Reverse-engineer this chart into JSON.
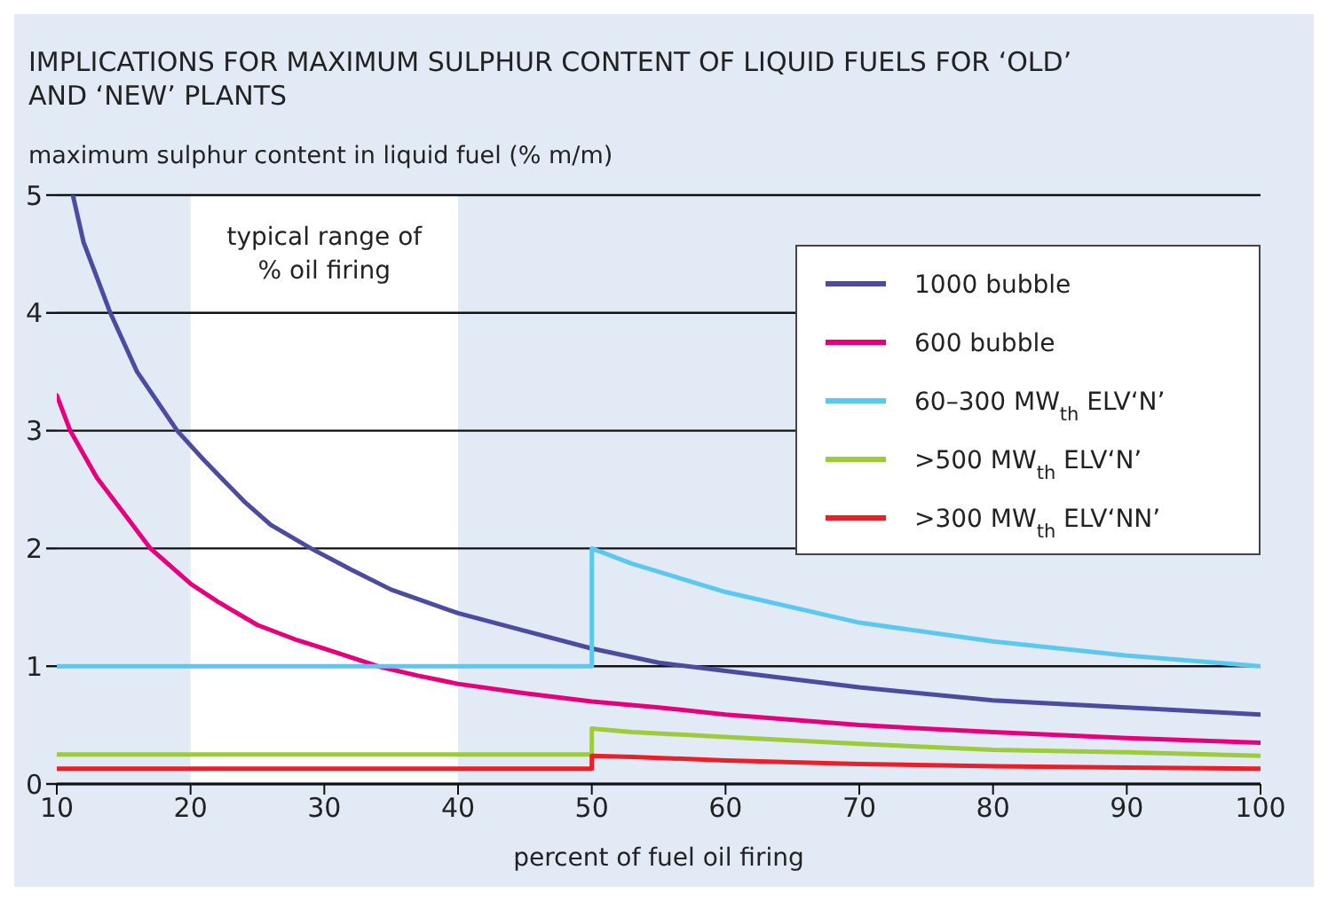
{
  "chart_data": {
    "type": "line",
    "title": "IMPLICATIONS FOR MAXIMUM SULPHUR CONTENT OF LIQUID FUELS FOR ‘OLD’ AND ‘NEW’ PLANTS",
    "ylabel": "maximum sulphur content in liquid fuel (% m/m)",
    "xlabel": "percent of fuel oil firing",
    "xlim": [
      10,
      100
    ],
    "xticks": [
      10,
      20,
      30,
      40,
      50,
      60,
      70,
      80,
      90,
      100
    ],
    "ylim": [
      0,
      5
    ],
    "yticks": [
      0,
      1,
      2,
      3,
      4,
      5
    ],
    "grid": "y",
    "legend": "top right",
    "marker": "none",
    "line_style": "solid",
    "bands": [
      {
        "axis": "x",
        "from": 20,
        "to": 40,
        "label": "typical range of % oil firing",
        "color": "#ffffff"
      }
    ],
    "series": [
      {
        "name": "1000 bubble",
        "color": "#4b4ba0",
        "x": [
          11.2,
          12,
          13,
          14,
          16,
          19,
          21,
          24,
          26,
          29,
          32,
          35,
          40,
          45,
          50,
          55,
          60,
          65,
          70,
          80,
          90,
          100
        ],
        "values": [
          5.0,
          4.6,
          4.3,
          4.0,
          3.5,
          3.0,
          2.75,
          2.4,
          2.2,
          2.0,
          1.82,
          1.65,
          1.45,
          1.3,
          1.15,
          1.03,
          0.96,
          0.89,
          0.82,
          0.71,
          0.65,
          0.59
        ]
      },
      {
        "name": "600 bubble",
        "color": "#e6007e",
        "x": [
          10,
          11,
          12,
          13,
          15,
          17,
          20,
          22,
          25,
          28,
          30,
          34,
          37,
          40,
          45,
          50,
          55,
          60,
          70,
          80,
          90,
          100
        ],
        "values": [
          3.3,
          3.0,
          2.8,
          2.6,
          2.3,
          2.0,
          1.7,
          1.55,
          1.35,
          1.22,
          1.15,
          1.0,
          0.92,
          0.85,
          0.77,
          0.7,
          0.65,
          0.59,
          0.5,
          0.44,
          0.39,
          0.35
        ]
      },
      {
        "name": "60–300 MW$_{th}$ ELV‘N’",
        "color": "#5bc8f0",
        "x": [
          10,
          50,
          50,
          53,
          60,
          70,
          80,
          90,
          100
        ],
        "values": [
          1,
          1,
          2,
          1.87,
          1.63,
          1.37,
          1.21,
          1.09,
          1.0
        ]
      },
      {
        "name": ">500 MW$_{th}$ ELV‘N’",
        "color": "#9ccc3c",
        "x": [
          10,
          50,
          50,
          53,
          60,
          70,
          80,
          90,
          100
        ],
        "values": [
          0.25,
          0.25,
          0.47,
          0.44,
          0.4,
          0.34,
          0.29,
          0.27,
          0.24
        ]
      },
      {
        "name": ">300 MW$_{th}$ ELV‘NN’",
        "color": "#e8202a",
        "x": [
          10,
          50,
          50,
          53,
          60,
          70,
          80,
          90,
          100
        ],
        "values": [
          0.13,
          0.13,
          0.24,
          0.23,
          0.2,
          0.17,
          0.15,
          0.14,
          0.13
        ]
      }
    ]
  }
}
